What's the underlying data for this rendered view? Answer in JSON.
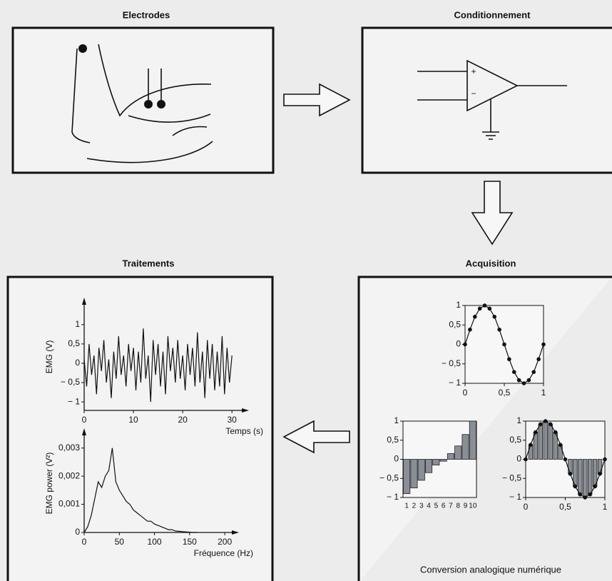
{
  "panels": {
    "electrodes": {
      "title": "Electrodes"
    },
    "conditionnement": {
      "title": "Conditionnement",
      "opamp": {
        "plus": "+",
        "minus": "−"
      }
    },
    "traitements": {
      "title": "Traitements",
      "charts": [
        {
          "type": "line",
          "ylabel": "EMG (V)",
          "xlabel": "Temps (s)",
          "xlim": [
            0,
            32
          ],
          "ylim": [
            -1.22,
            1.55
          ],
          "xticks": [
            0,
            10,
            20,
            30
          ],
          "yticks": [
            1,
            {
              "value": 0.5,
              "label": "0,5"
            },
            0,
            {
              "value": -0.5,
              "label": "− 0,5"
            },
            {
              "value": -1,
              "label": "− 1"
            }
          ],
          "x": [
            0,
            0.5,
            1,
            1.5,
            2,
            2.5,
            3,
            3.5,
            4,
            4.5,
            5,
            5.5,
            6,
            6.5,
            7,
            7.5,
            8,
            8.5,
            9,
            9.5,
            10,
            10.5,
            11,
            11.5,
            12,
            12.5,
            13,
            13.5,
            14,
            14.5,
            15,
            15.5,
            16,
            16.5,
            17,
            17.5,
            18,
            18.5,
            19,
            19.5,
            20,
            20.5,
            21,
            21.5,
            22,
            22.5,
            23,
            23.5,
            24,
            24.5,
            25,
            25.5,
            26,
            26.5,
            27,
            27.5,
            28,
            28.5,
            29,
            29.5,
            30
          ],
          "values": [
            0.1,
            -0.6,
            0.5,
            -0.3,
            0.2,
            -0.8,
            0.4,
            -0.2,
            0.6,
            -0.5,
            0.1,
            -0.9,
            0.3,
            -0.4,
            0.7,
            -0.3,
            0.2,
            -0.6,
            0.5,
            -0.2,
            0.4,
            -0.7,
            0.3,
            -0.5,
            0.9,
            -0.4,
            0.2,
            -1,
            0.6,
            -0.3,
            0.5,
            -0.6,
            0.3,
            -0.8,
            0.7,
            -0.2,
            0.4,
            -0.5,
            0.6,
            -0.4,
            0.2,
            -0.7,
            0.5,
            -0.3,
            0.4,
            -0.6,
            0.8,
            -0.5,
            0.3,
            -0.9,
            0.6,
            -0.4,
            0.5,
            -0.7,
            0.3,
            -0.6,
            0.7,
            -0.8,
            0.4,
            -0.5,
            0.2
          ],
          "color": "#111111"
        },
        {
          "type": "line",
          "ylabel": "EMG power (V²)",
          "xlabel": "Fréquence (Hz)",
          "xlim": [
            0,
            210
          ],
          "ylim": [
            0,
            0.0035
          ],
          "xticks": [
            0,
            50,
            100,
            150,
            200
          ],
          "yticks": [
            0,
            {
              "value": 0.001,
              "label": "0,001"
            },
            {
              "value": 0.002,
              "label": "0,002"
            },
            {
              "value": 0.003,
              "label": "0,003"
            }
          ],
          "x": [
            0,
            5,
            10,
            15,
            20,
            25,
            30,
            35,
            40,
            45,
            50,
            55,
            60,
            65,
            70,
            75,
            80,
            85,
            90,
            95,
            100,
            105,
            110,
            115,
            120,
            125,
            130,
            135,
            140,
            145,
            150,
            155,
            160
          ],
          "values": [
            0,
            0.0002,
            0.0006,
            0.0012,
            0.0018,
            0.0016,
            0.002,
            0.0022,
            0.003,
            0.0018,
            0.0015,
            0.0013,
            0.0011,
            0.001,
            0.0008,
            0.0007,
            0.0006,
            0.0005,
            0.0004,
            0.0004,
            0.0003,
            0.00025,
            0.0002,
            0.00015,
            0.0001,
            0.0001,
            5e-05,
            4e-05,
            3e-05,
            2e-05,
            1e-05,
            0,
            0
          ],
          "color": "#111111"
        }
      ]
    },
    "acquisition": {
      "title": "Acquisition",
      "caption": "Conversion analogique numérique",
      "charts": [
        {
          "type": "line",
          "markers": true,
          "xlim": [
            0,
            1
          ],
          "ylim": [
            -1,
            1
          ],
          "xticks": [
            0,
            {
              "value": 0.5,
              "label": "0,5"
            },
            1
          ],
          "yticks": [
            1,
            {
              "value": 0.5,
              "label": "0,5"
            },
            0,
            {
              "value": -0.5,
              "label": "− 0,5"
            },
            {
              "value": -1,
              "label": "− 1"
            }
          ],
          "x": [
            0,
            0.0625,
            0.125,
            0.1875,
            0.25,
            0.3125,
            0.375,
            0.4375,
            0.5,
            0.5625,
            0.625,
            0.6875,
            0.75,
            0.8125,
            0.875,
            0.9375,
            1
          ],
          "values": [
            0,
            0.38,
            0.71,
            0.92,
            1,
            0.92,
            0.71,
            0.38,
            0,
            -0.38,
            -0.71,
            -0.92,
            -1,
            -0.92,
            -0.71,
            -0.38,
            0
          ],
          "color": "#111111"
        },
        {
          "type": "bar",
          "ylim": [
            -1,
            1
          ],
          "yticks": [
            1,
            {
              "value": 0.5,
              "label": "0,5"
            },
            0,
            {
              "value": -0.5,
              "label": "− 0,5"
            },
            {
              "value": -1,
              "label": "− 1"
            }
          ],
          "categories": [
            "1",
            "2",
            "3",
            "4",
            "5",
            "6",
            "7",
            "8",
            "9",
            "10"
          ],
          "values": [
            -0.9,
            -0.75,
            -0.55,
            -0.35,
            -0.15,
            -0.05,
            0.15,
            0.35,
            0.65,
            1
          ],
          "color": "#8a8f96"
        },
        {
          "type": "bar",
          "markers": true,
          "xlim": [
            0,
            1
          ],
          "ylim": [
            -1,
            1
          ],
          "xticks": [
            0,
            {
              "value": 0.5,
              "label": "0,5"
            },
            1
          ],
          "yticks": [
            1,
            {
              "value": 0.5,
              "label": "0,5"
            },
            0,
            {
              "value": -0.5,
              "label": "− 0,5"
            },
            {
              "value": -1,
              "label": "− 1"
            }
          ],
          "x": [
            0,
            0.0625,
            0.125,
            0.1875,
            0.25,
            0.3125,
            0.375,
            0.4375,
            0.5,
            0.5625,
            0.625,
            0.6875,
            0.75,
            0.8125,
            0.875,
            0.9375,
            1
          ],
          "values": [
            0,
            0.38,
            0.71,
            0.92,
            1,
            0.92,
            0.71,
            0.38,
            0,
            -0.38,
            -0.71,
            -0.92,
            -1,
            -0.92,
            -0.71,
            -0.38,
            0
          ],
          "color": "#8a8f96"
        }
      ]
    }
  }
}
